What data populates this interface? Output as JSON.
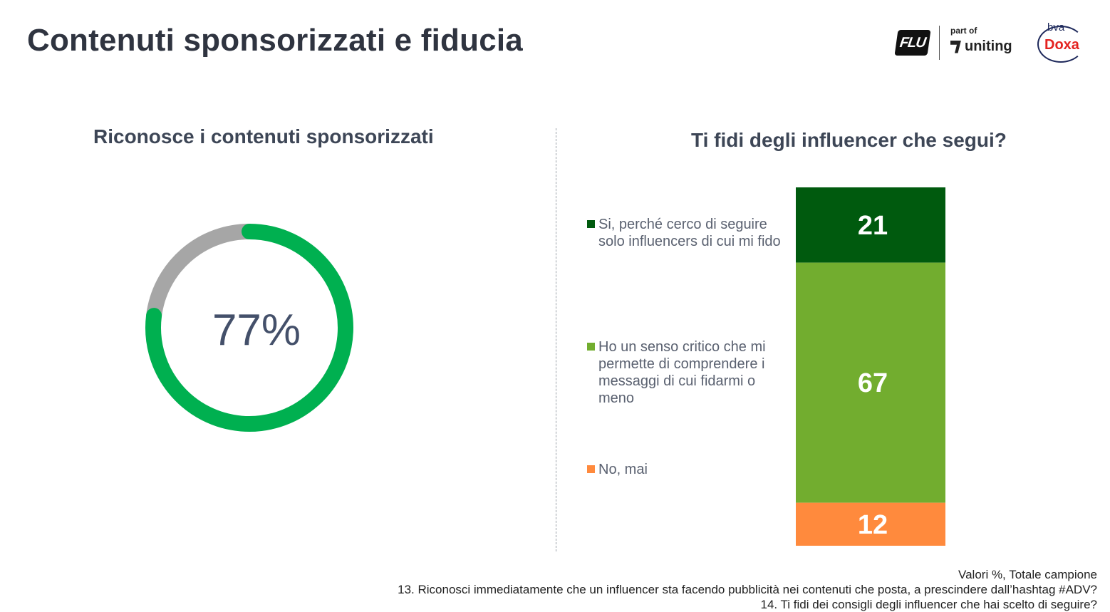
{
  "page": {
    "title": "Contenuti sponsorizzati e fiducia"
  },
  "logos": {
    "flu": "FLU",
    "part_of": "part of",
    "uniting": "uniting",
    "bva": "bva",
    "doxa": "Doxa"
  },
  "left": {
    "subtitle": "Riconosce i contenuti sponsorizzati"
  },
  "right": {
    "subtitle": "Ti fidi degli influencer che segui?"
  },
  "colors": {
    "donut_value": "#00b050",
    "donut_rest": "#a6a6a6",
    "trust": "#005a0e",
    "critical": "#72ad2f",
    "never": "#ff8a3d"
  },
  "chart_data": [
    {
      "type": "pie",
      "style": "donut",
      "values": [
        77,
        23
      ],
      "center_label": "77%",
      "title": "Riconosce i contenuti sponsorizzati"
    },
    {
      "type": "bar",
      "stacked": true,
      "title": "Ti fidi degli influencer che segui?",
      "series": [
        {
          "name": "Si, perché cerco di seguire solo influencers di cui mi fido",
          "values": [
            21
          ],
          "label": "21"
        },
        {
          "name": "Ho un senso critico che mi permette di comprendere i messaggi di cui fidarmi o meno",
          "values": [
            67
          ],
          "label": "67"
        },
        {
          "name": "No, mai",
          "values": [
            12
          ],
          "label": "12"
        }
      ],
      "ylim": [
        0,
        100
      ]
    }
  ],
  "footnotes": {
    "line1": "Valori %, Totale campione",
    "line2": "13. Riconosci immediatamente che un influencer sta facendo pubblicità nei contenuti che posta, a prescindere dall’hashtag #ADV?",
    "line3": "14. Ti fidi dei consigli degli influencer che hai scelto di seguire?"
  }
}
